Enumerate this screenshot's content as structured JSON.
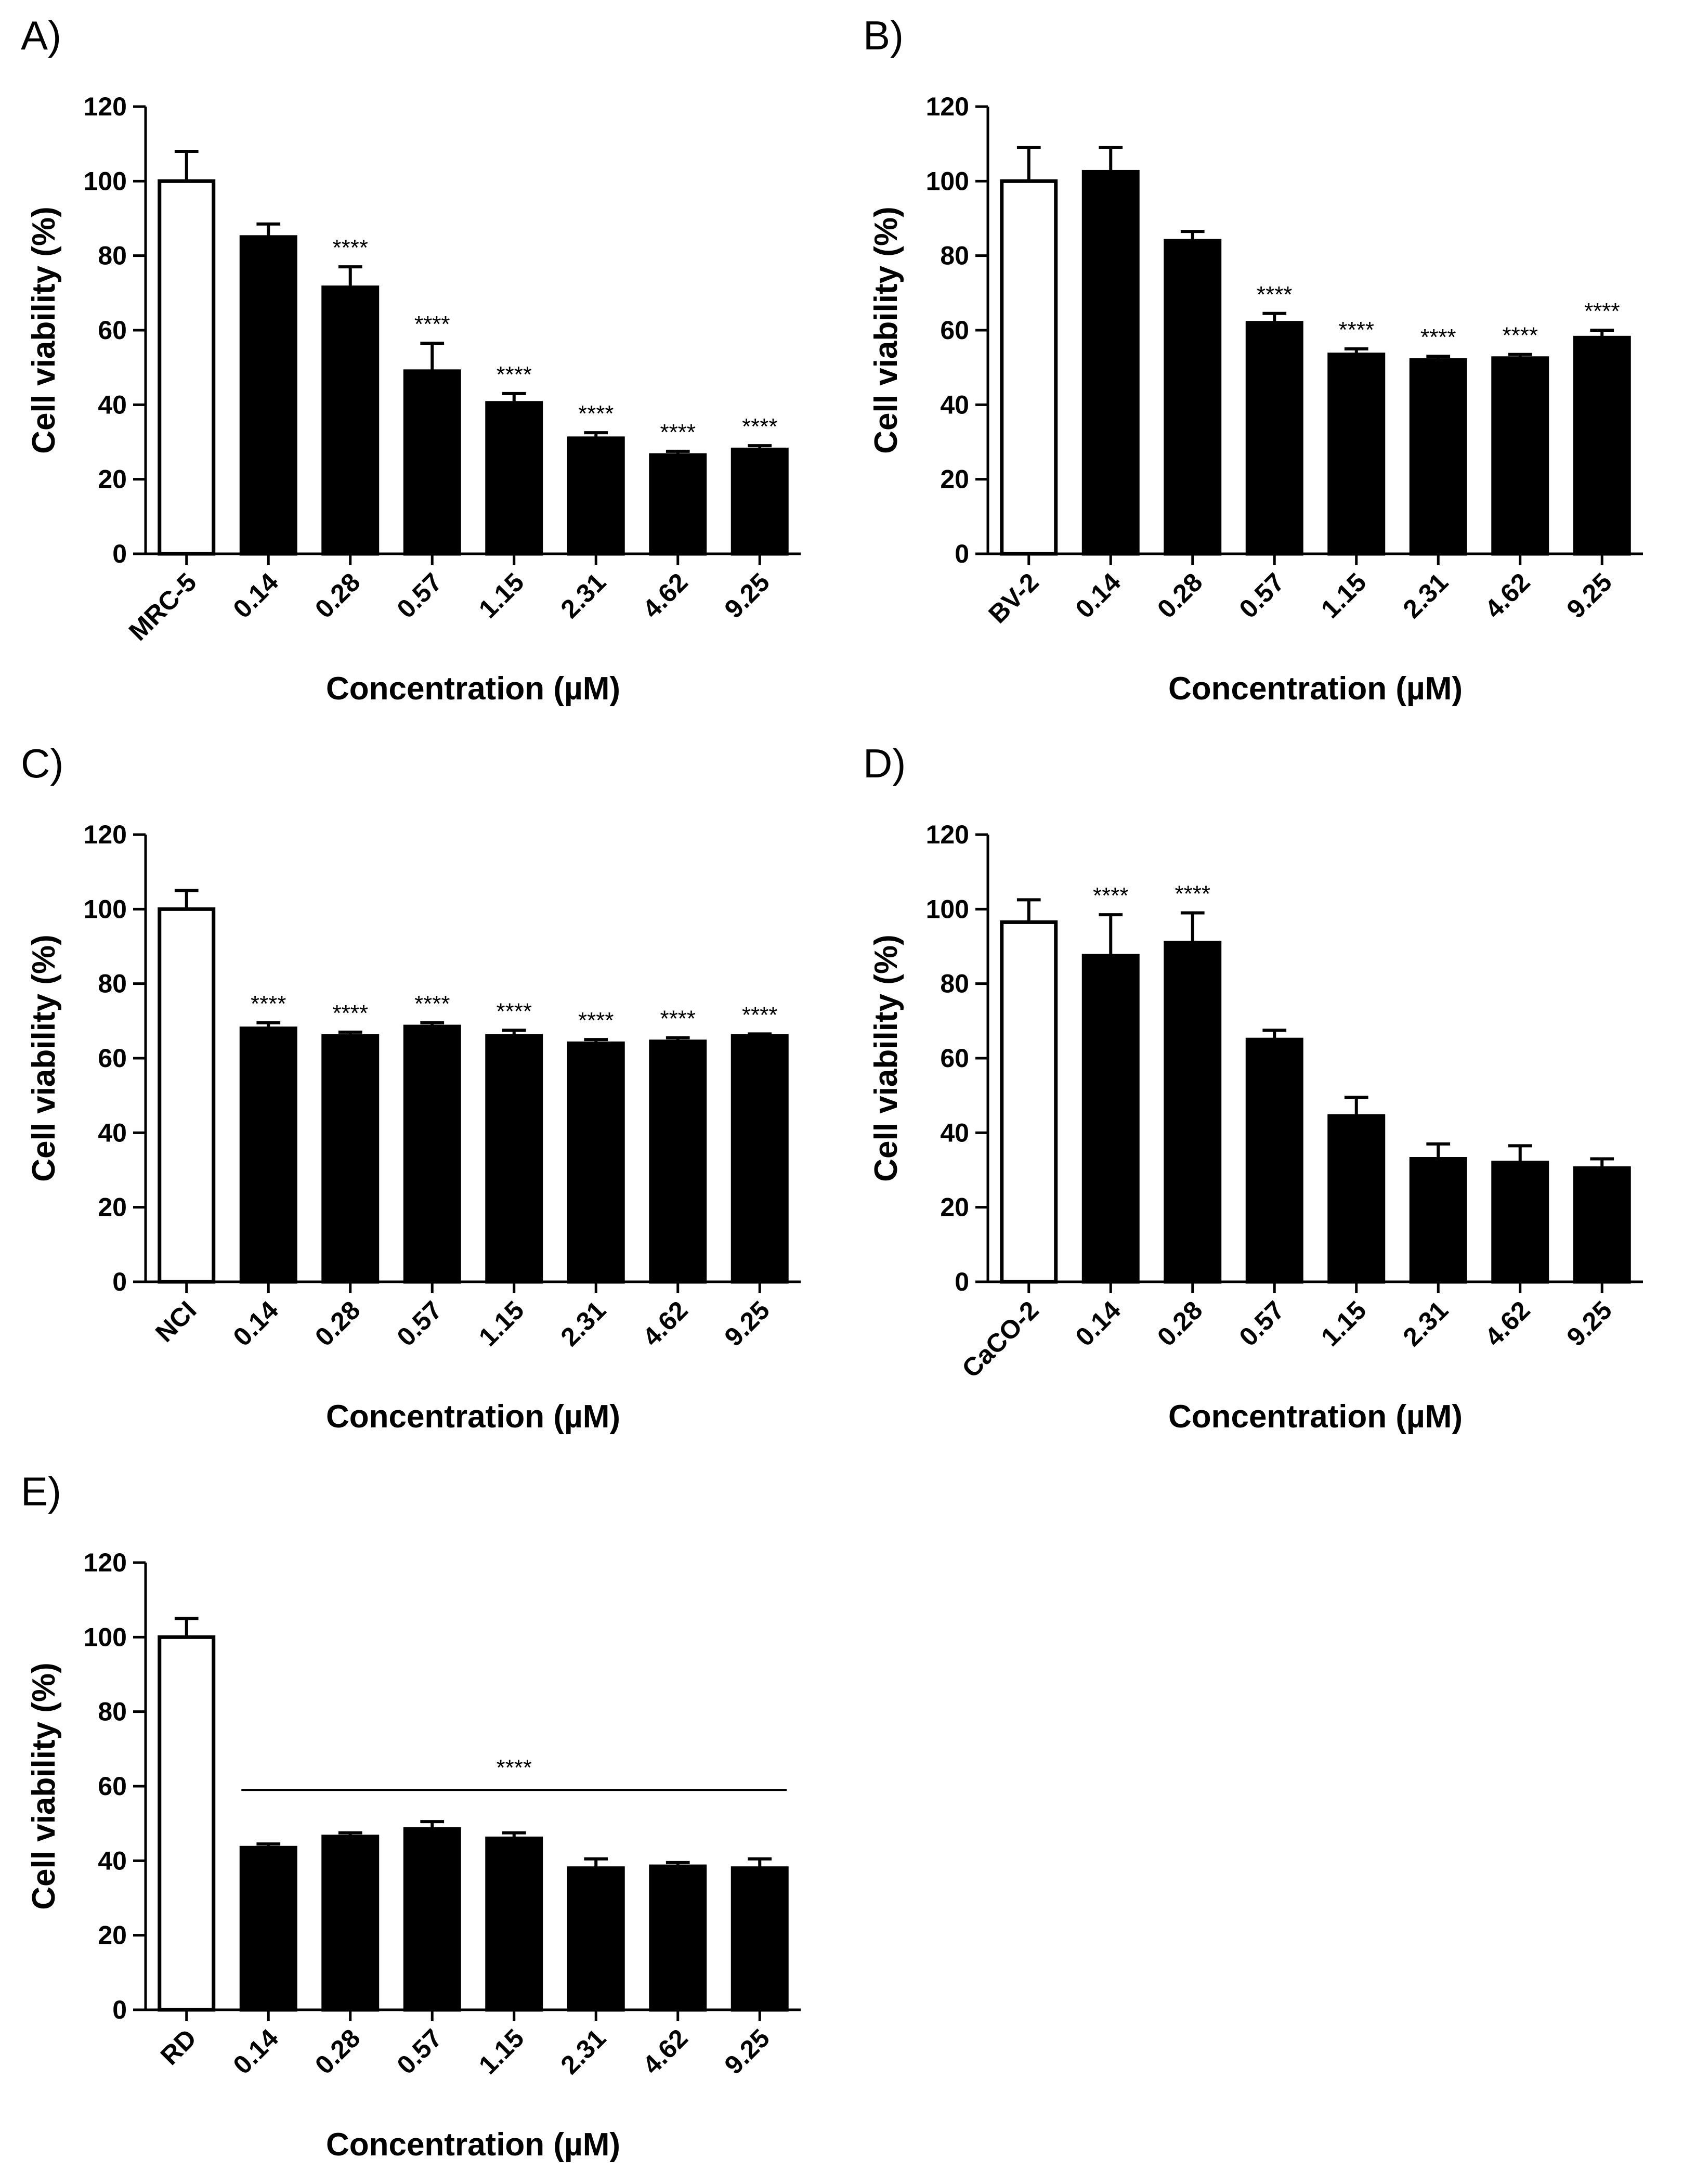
{
  "chart_data": [
    {
      "type": "bar",
      "panel_label": "A)",
      "title": "",
      "xlabel": "Concentration (µM)",
      "ylabel": "Cell viability (%)",
      "ylim": [
        0,
        120
      ],
      "yticks": [
        "0",
        "20",
        "40",
        "60",
        "80",
        "100",
        "120"
      ],
      "categories": [
        "MRC-5",
        "0.14",
        "0.28",
        "0.57",
        "1.15",
        "2.31",
        "4.62",
        "9.25"
      ],
      "values": [
        100,
        85,
        71.5,
        49,
        40.5,
        31,
        26.5,
        28
      ],
      "errors": [
        8,
        3.5,
        5.5,
        7.5,
        2.5,
        1.5,
        1,
        1
      ],
      "fills": [
        "white",
        "black",
        "black",
        "black",
        "black",
        "black",
        "black",
        "black"
      ],
      "significance": [
        "",
        "",
        "****",
        "****",
        "****",
        "****",
        "****",
        "****"
      ],
      "significance_bar": null
    },
    {
      "type": "bar",
      "panel_label": "B)",
      "title": "",
      "xlabel": "Concentration (µM)",
      "ylabel": "Cell viability (%)",
      "ylim": [
        0,
        120
      ],
      "yticks": [
        "0",
        "20",
        "40",
        "60",
        "80",
        "100",
        "120"
      ],
      "categories": [
        "BV-2",
        "0.14",
        "0.28",
        "0.57",
        "1.15",
        "2.31",
        "4.62",
        "9.25"
      ],
      "values": [
        100,
        102.5,
        84,
        62,
        53.5,
        52,
        52.5,
        58
      ],
      "errors": [
        9,
        6.5,
        2.5,
        2.5,
        1.5,
        1,
        1,
        2
      ],
      "fills": [
        "white",
        "black",
        "black",
        "black",
        "black",
        "black",
        "black",
        "black"
      ],
      "significance": [
        "",
        "",
        "",
        "****",
        "****",
        "****",
        "****",
        "****"
      ],
      "significance_bar": null
    },
    {
      "type": "bar",
      "panel_label": "C)",
      "title": "",
      "xlabel": "Concentration (µM)",
      "ylabel": "Cell viability (%)",
      "ylim": [
        0,
        120
      ],
      "yticks": [
        "0",
        "20",
        "40",
        "60",
        "80",
        "100",
        "120"
      ],
      "categories": [
        "NCI",
        "0.14",
        "0.28",
        "0.57",
        "1.15",
        "2.31",
        "4.62",
        "9.25"
      ],
      "values": [
        100,
        68,
        66,
        68.5,
        66,
        64,
        64.5,
        66
      ],
      "errors": [
        5,
        1.5,
        1,
        1,
        1.5,
        1,
        1,
        0.5
      ],
      "fills": [
        "white",
        "black",
        "black",
        "black",
        "black",
        "black",
        "black",
        "black"
      ],
      "significance": [
        "",
        "****",
        "****",
        "****",
        "****",
        "****",
        "****",
        "****"
      ],
      "significance_bar": null
    },
    {
      "type": "bar",
      "panel_label": "D)",
      "title": "",
      "xlabel": "Concentration (µM)",
      "ylabel": "Cell viability (%)",
      "ylim": [
        0,
        120
      ],
      "yticks": [
        "0",
        "20",
        "40",
        "60",
        "80",
        "100",
        "120"
      ],
      "categories": [
        "CaCO-2",
        "0.14",
        "0.28",
        "0.57",
        "1.15",
        "2.31",
        "4.62",
        "9.25"
      ],
      "values": [
        96.5,
        87.5,
        91,
        65,
        44.5,
        33,
        32,
        30.5
      ],
      "errors": [
        6,
        11,
        8,
        2.5,
        5,
        4,
        4.5,
        2.5
      ],
      "fills": [
        "white",
        "black",
        "black",
        "black",
        "black",
        "black",
        "black",
        "black"
      ],
      "significance": [
        "",
        "****",
        "****",
        "",
        "",
        "",
        "",
        ""
      ],
      "significance_bar": null
    },
    {
      "type": "bar",
      "panel_label": "E)",
      "title": "",
      "xlabel": "Concentration (µM)",
      "ylabel": "Cell viability (%)",
      "ylim": [
        0,
        120
      ],
      "yticks": [
        "0",
        "20",
        "40",
        "60",
        "80",
        "100",
        "120"
      ],
      "categories": [
        "RD",
        "0.14",
        "0.28",
        "0.57",
        "1.15",
        "2.31",
        "4.62",
        "9.25"
      ],
      "values": [
        100,
        43.5,
        46.5,
        48.5,
        46,
        38,
        38.5,
        38
      ],
      "errors": [
        5,
        1,
        1,
        2,
        1.5,
        2.5,
        1,
        2.5
      ],
      "fills": [
        "white",
        "black",
        "black",
        "black",
        "black",
        "black",
        "black",
        "black"
      ],
      "significance": [
        "",
        "",
        "",
        "",
        "",
        "",
        "",
        ""
      ],
      "significance_bar": {
        "value": 59,
        "from": 1,
        "to": 7,
        "label": "****"
      }
    }
  ]
}
